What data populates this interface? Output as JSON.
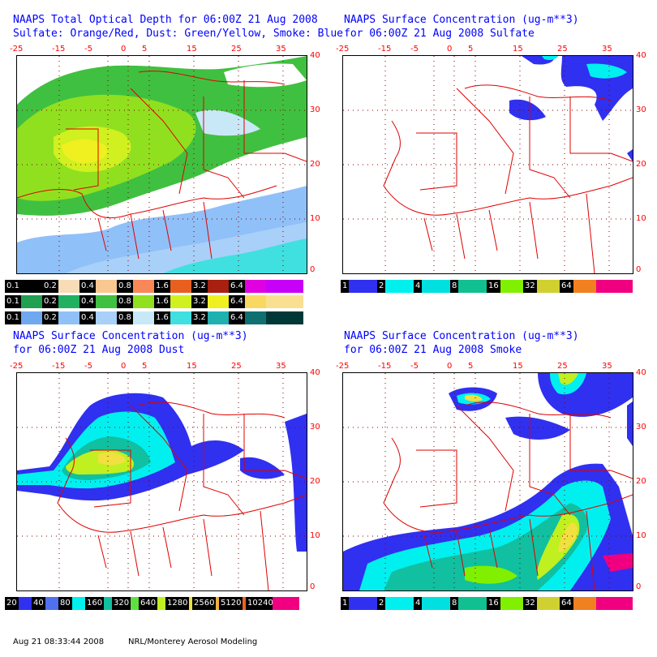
{
  "panels": [
    {
      "id": "tl",
      "title1": "NAAPS Total Optical Depth for 06:00Z 21 Aug 2008",
      "title2": "Sulfate: Orange/Red, Dust: Green/Yellow, Smoke: Blue"
    },
    {
      "id": "tr",
      "title1": "NAAPS Surface Concentration (ug-m**3)",
      "title2": "for 06:00Z 21 Aug 2008  Sulfate"
    },
    {
      "id": "bl",
      "title1": "NAAPS Surface Concentration (ug-m**3)",
      "title2": "for 06:00Z 21 Aug 2008  Dust"
    },
    {
      "id": "br",
      "title1": "NAAPS Surface Concentration (ug-m**3)",
      "title2": "for 06:00Z 21 Aug 2008  Smoke"
    }
  ],
  "lon_ticks": [
    "-25",
    "-15",
    "-5",
    "0",
    "5",
    "15",
    "25",
    "35"
  ],
  "lat_ticks": [
    "40",
    "30",
    "20",
    "10",
    "0"
  ],
  "od_colorbars": {
    "sulfate": {
      "labels": [
        "0.1",
        "0.2",
        "0.4",
        "0.8",
        "1.6",
        "3.2",
        "6.4",
        ""
      ],
      "colors": [
        "#000000",
        "#f8dcb8",
        "#f8c890",
        "#f88858",
        "#e86020",
        "#a82010",
        "#e000e0",
        "#c800f8"
      ]
    },
    "dust": {
      "labels": [
        "0.1",
        "0.2",
        "0.4",
        "0.8",
        "1.6",
        "3.2",
        "6.4",
        ""
      ],
      "colors": [
        "#20a050",
        "#20b060",
        "#40c040",
        "#90e020",
        "#d0f020",
        "#f0f020",
        "#f8d860",
        "#f8e090"
      ]
    },
    "smoke": {
      "labels": [
        "0.1",
        "0.2",
        "0.4",
        "0.8",
        "1.6",
        "3.2",
        "6.4",
        ""
      ],
      "colors": [
        "#70a8f0",
        "#90c0f8",
        "#a8d0f8",
        "#c8e8f8",
        "#40e0e0",
        "#20b0b0",
        "#107070",
        "#003838"
      ]
    }
  },
  "conc_colorbar": {
    "labels": [
      "1",
      "2",
      "4",
      "8",
      "16",
      "32",
      "64",
      ""
    ],
    "colors": [
      "#3030f0",
      "#00f0f0",
      "#00e0e0",
      "#10c090",
      "#80f000",
      "#d0d030",
      "#f08020",
      "#f00080"
    ]
  },
  "dust_colorbar": {
    "labels": [
      "20",
      "40",
      "80",
      "160",
      "320",
      "640",
      "1280",
      "2560",
      "5120",
      "10240",
      ""
    ],
    "colors": [
      "#3030f0",
      "#5070f0",
      "#00f0f0",
      "#10c0a0",
      "#60e040",
      "#c0f020",
      "#f0e040",
      "#f0b040",
      "#f06020",
      "#f01060",
      "#f00080"
    ]
  },
  "footer": {
    "timestamp": "Aug 21 08:33:44 2008",
    "credit": "NRL/Monterey Aerosol Modeling"
  }
}
